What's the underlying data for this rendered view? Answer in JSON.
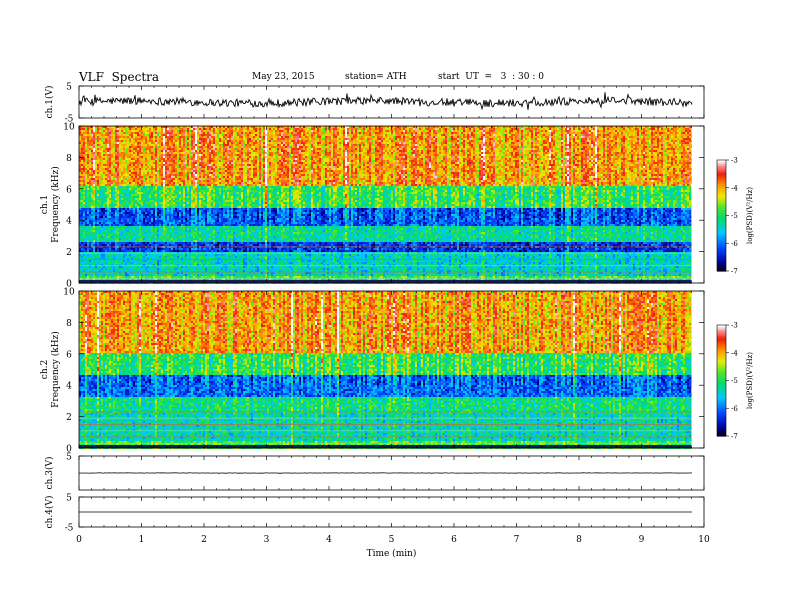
{
  "header": {
    "title": "VLF  Spectra",
    "date": "May 23, 2015",
    "station": "station= ATH",
    "start": "start  UT  =   3  : 30 : 0"
  },
  "chart_data": [
    {
      "type": "line",
      "panel": "ch1-waveform",
      "ylabel": "ch.1(V)",
      "ylim": [
        -5,
        5
      ],
      "yticks": [
        "5",
        "-5"
      ],
      "xlim": [
        0,
        10
      ],
      "baseline": 0,
      "envelope_amplitude": 1.2
    },
    {
      "type": "heatmap",
      "panel": "ch1-spectrogram",
      "ylabel_lines": [
        "ch.1",
        "Frequency (kHz)"
      ],
      "ylim": [
        0,
        10
      ],
      "yticks": [
        "0",
        "2",
        "4",
        "6",
        "8",
        "10"
      ],
      "xlim": [
        0,
        10
      ],
      "data_end_min": 9.8,
      "colorbar": {
        "label": "log(PSD)(V²/Hz)",
        "min": -7,
        "max": -3,
        "ticks": [
          "-3",
          "-4",
          "-5",
          "-6",
          "-7"
        ]
      },
      "bands": [
        {
          "fmin": 0.0,
          "fmax": 0.4,
          "logpsd": -4.8
        },
        {
          "fmin": 0.4,
          "fmax": 2.0,
          "logpsd": -5.4
        },
        {
          "fmin": 2.0,
          "fmax": 2.6,
          "logpsd": -6.3
        },
        {
          "fmin": 2.6,
          "fmax": 3.6,
          "logpsd": -5.2
        },
        {
          "fmin": 3.6,
          "fmax": 4.8,
          "logpsd": -6.1
        },
        {
          "fmin": 4.8,
          "fmax": 6.2,
          "logpsd": -4.9
        },
        {
          "fmin": 6.2,
          "fmax": 10.0,
          "logpsd": -3.9
        }
      ]
    },
    {
      "type": "heatmap",
      "panel": "ch2-spectrogram",
      "ylabel_lines": [
        "ch.2",
        "Frequency (kHz)"
      ],
      "ylim": [
        0,
        10
      ],
      "yticks": [
        "0",
        "2",
        "4",
        "6",
        "8",
        "10"
      ],
      "xlim": [
        0,
        10
      ],
      "data_end_min": 9.8,
      "colorbar": {
        "label": "log(PSD)(V²/Hz)",
        "min": -7,
        "max": -3,
        "ticks": [
          "-3",
          "-4",
          "-5",
          "-6",
          "-7"
        ]
      },
      "bands": [
        {
          "fmin": 0.0,
          "fmax": 0.5,
          "logpsd": -4.8
        },
        {
          "fmin": 0.5,
          "fmax": 2.2,
          "logpsd": -5.3
        },
        {
          "fmin": 2.2,
          "fmax": 3.2,
          "logpsd": -5.1
        },
        {
          "fmin": 3.2,
          "fmax": 4.6,
          "logpsd": -6.0
        },
        {
          "fmin": 4.6,
          "fmax": 6.0,
          "logpsd": -4.9
        },
        {
          "fmin": 6.0,
          "fmax": 10.0,
          "logpsd": -3.9
        }
      ]
    },
    {
      "type": "line",
      "panel": "ch3-waveform",
      "ylabel": "ch.3(V)",
      "ylim": [
        -5,
        5
      ],
      "yticks": [
        "5"
      ],
      "xlim": [
        0,
        10
      ],
      "baseline": 0,
      "envelope_amplitude": 0.05
    },
    {
      "type": "line",
      "panel": "ch4-waveform",
      "ylabel": "ch.4(V)",
      "ylim": [
        -5,
        5
      ],
      "yticks": [
        "5",
        "-5"
      ],
      "xlim": [
        0,
        10
      ],
      "baseline": 0,
      "envelope_amplitude": 0.0
    }
  ],
  "xaxis": {
    "label": "Time  (min)",
    "ticks": [
      "0",
      "1",
      "2",
      "3",
      "4",
      "5",
      "6",
      "7",
      "8",
      "9",
      "10"
    ]
  }
}
